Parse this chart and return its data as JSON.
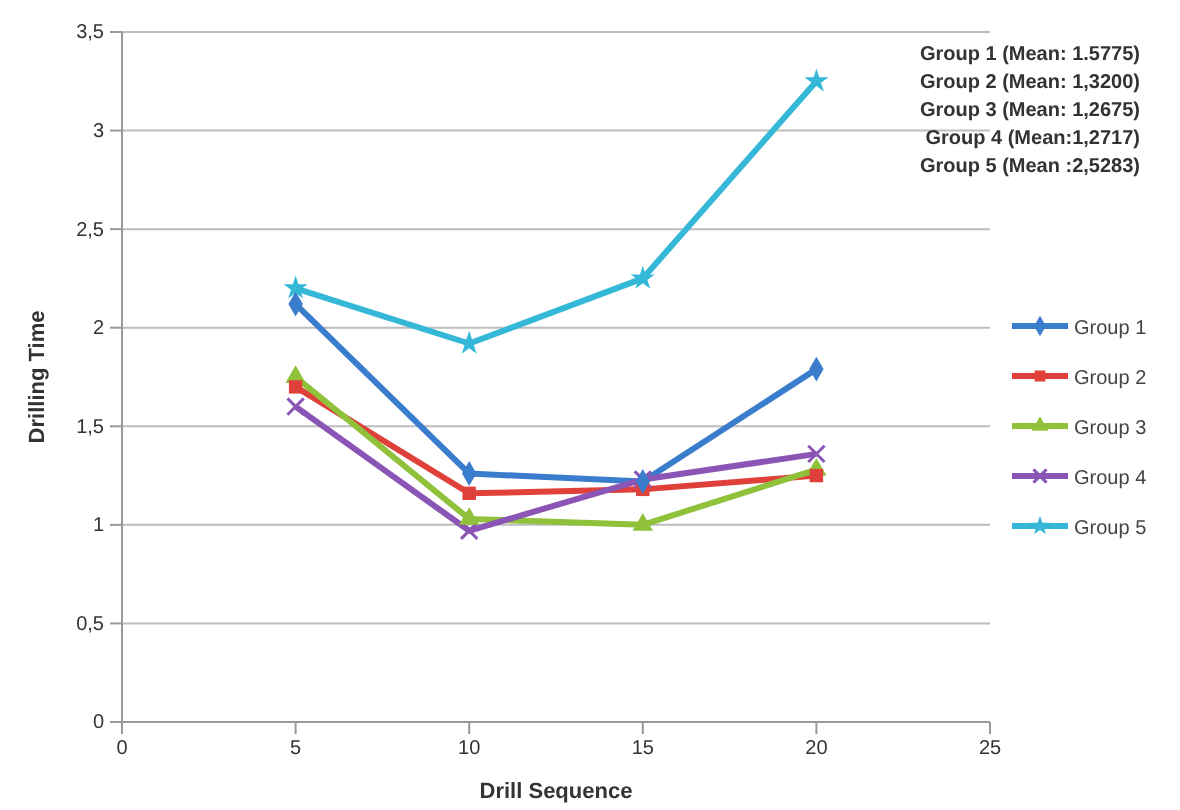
{
  "chart_data": {
    "type": "line",
    "xlabel": "Drill Sequence",
    "ylabel": "Drilling Time",
    "x": [
      5,
      10,
      15,
      20
    ],
    "series": [
      {
        "name": "Group 1",
        "color": "#3a7dcc",
        "marker": "diamond",
        "values": [
          2.12,
          1.26,
          1.22,
          1.79
        ]
      },
      {
        "name": "Group 2",
        "color": "#e0403a",
        "marker": "square",
        "values": [
          1.7,
          1.16,
          1.18,
          1.25
        ]
      },
      {
        "name": "Group 3",
        "color": "#8fc23a",
        "marker": "triangle",
        "values": [
          1.75,
          1.03,
          1.0,
          1.28
        ]
      },
      {
        "name": "Group 4",
        "color": "#8a55b5",
        "marker": "cross",
        "values": [
          1.6,
          0.97,
          1.23,
          1.36
        ]
      },
      {
        "name": "Group 5",
        "color": "#35b8d8",
        "marker": "star",
        "values": [
          2.2,
          1.92,
          2.25,
          3.25
        ]
      }
    ],
    "xlim": [
      0,
      25
    ],
    "xticks": [
      0,
      5,
      10,
      15,
      20,
      25
    ],
    "ylim": [
      0,
      3.5
    ],
    "yticks": [
      0,
      {
        "value": 0.5,
        "label": "0,5"
      },
      1,
      {
        "value": 1.5,
        "label": "1,5"
      },
      2,
      {
        "value": 2.5,
        "label": "2,5"
      },
      3,
      {
        "value": 3.5,
        "label": "3,5"
      }
    ],
    "grid": "y",
    "legend": "right",
    "annotations": [
      "Group 1 (Mean: 1.5775)",
      "Group 2 (Mean: 1,3200)",
      "Group 3 (Mean: 1,2675)",
      "Group 4 (Mean:1,2717)",
      "Group 5 (Mean :2,5283)"
    ]
  }
}
